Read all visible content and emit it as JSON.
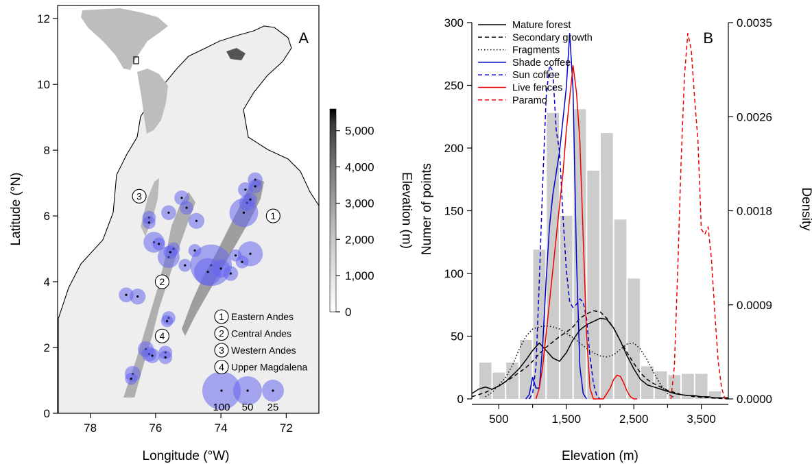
{
  "chart_data": [
    {
      "type": "map",
      "panel_label": "A",
      "xlabel": "Longitude (°W)",
      "ylabel": "Latitude (°N)",
      "xlim": [
        79,
        71
      ],
      "ylim": [
        0,
        12.4
      ],
      "xticks": [
        78,
        76,
        74,
        72
      ],
      "yticks": [
        0,
        2,
        4,
        6,
        8,
        10,
        12
      ],
      "colorbar": {
        "label": "Elevation (m)",
        "ticks": [
          "0",
          "1,000",
          "2,000",
          "3,000",
          "4,000",
          "5,000"
        ],
        "tick_values": [
          0,
          1000,
          2000,
          3000,
          4000,
          5000
        ],
        "range": [
          0,
          5600
        ]
      },
      "regions": [
        {
          "number": "1",
          "name": "Eastern Andes",
          "lon": 72.4,
          "lat": 6.0
        },
        {
          "number": "2",
          "name": "Central Andes",
          "lon": 75.8,
          "lat": 4.0
        },
        {
          "number": "3",
          "name": "Western Andes",
          "lon": 76.5,
          "lat": 6.6
        },
        {
          "number": "4",
          "name": "Upper Magdalena",
          "lon": 75.8,
          "lat": 2.35
        }
      ],
      "size_legend": [
        {
          "value": 100,
          "label": "100"
        },
        {
          "value": 50,
          "label": "50"
        },
        {
          "value": 25,
          "label": "25"
        }
      ],
      "sites": [
        {
          "lon": 74.3,
          "lat": 4.5,
          "n": 120
        },
        {
          "lon": 74.4,
          "lat": 4.3,
          "n": 45
        },
        {
          "lon": 73.3,
          "lat": 6.1,
          "n": 50
        },
        {
          "lon": 73.1,
          "lat": 4.85,
          "n": 35
        },
        {
          "lon": 75.6,
          "lat": 4.75,
          "n": 25
        },
        {
          "lon": 76.05,
          "lat": 5.2,
          "n": 22
        },
        {
          "lon": 74.0,
          "lat": 4.4,
          "n": 15
        },
        {
          "lon": 73.7,
          "lat": 4.25,
          "n": 8
        },
        {
          "lon": 73.2,
          "lat": 6.4,
          "n": 10
        },
        {
          "lon": 73.25,
          "lat": 6.8,
          "n": 8
        },
        {
          "lon": 72.95,
          "lat": 7.1,
          "n": 8
        },
        {
          "lon": 72.95,
          "lat": 6.9,
          "n": 6
        },
        {
          "lon": 73.1,
          "lat": 6.5,
          "n": 6
        },
        {
          "lon": 75.2,
          "lat": 6.55,
          "n": 8
        },
        {
          "lon": 75.05,
          "lat": 6.25,
          "n": 6
        },
        {
          "lon": 74.75,
          "lat": 5.85,
          "n": 10
        },
        {
          "lon": 75.6,
          "lat": 6.1,
          "n": 8
        },
        {
          "lon": 76.2,
          "lat": 5.95,
          "n": 6
        },
        {
          "lon": 76.2,
          "lat": 5.8,
          "n": 5
        },
        {
          "lon": 75.9,
          "lat": 5.15,
          "n": 5
        },
        {
          "lon": 75.45,
          "lat": 5.0,
          "n": 5
        },
        {
          "lon": 75.55,
          "lat": 4.9,
          "n": 6
        },
        {
          "lon": 75.1,
          "lat": 4.5,
          "n": 5
        },
        {
          "lon": 74.8,
          "lat": 4.95,
          "n": 5
        },
        {
          "lon": 76.9,
          "lat": 3.6,
          "n": 8
        },
        {
          "lon": 76.55,
          "lat": 3.55,
          "n": 10
        },
        {
          "lon": 75.6,
          "lat": 2.9,
          "n": 6
        },
        {
          "lon": 75.65,
          "lat": 2.8,
          "n": 4
        },
        {
          "lon": 76.3,
          "lat": 1.95,
          "n": 10
        },
        {
          "lon": 76.2,
          "lat": 1.8,
          "n": 8
        },
        {
          "lon": 76.1,
          "lat": 1.75,
          "n": 8
        },
        {
          "lon": 75.7,
          "lat": 1.85,
          "n": 6
        },
        {
          "lon": 75.7,
          "lat": 1.7,
          "n": 6
        },
        {
          "lon": 76.7,
          "lat": 1.2,
          "n": 10
        },
        {
          "lon": 76.75,
          "lat": 1.05,
          "n": 4
        },
        {
          "lon": 73.35,
          "lat": 4.6,
          "n": 5
        },
        {
          "lon": 73.55,
          "lat": 4.8,
          "n": 4
        }
      ],
      "inset": "world map with study area box"
    },
    {
      "type": "histogram_density",
      "panel_label": "B",
      "xlabel": "Elevation (m)",
      "ylabel": "Numer of points",
      "y2label": "Density",
      "xlim": [
        100,
        3900
      ],
      "ylim": [
        0,
        300
      ],
      "y2lim": [
        0,
        0.0035
      ],
      "xticks": [
        500,
        1500,
        2500,
        3500
      ],
      "xtick_labels": [
        "500",
        "1,500",
        "2,500",
        "3,500"
      ],
      "xminor": [
        1000,
        2000,
        3000
      ],
      "yticks": [
        0,
        50,
        100,
        150,
        200,
        250,
        300
      ],
      "y2ticks": [
        "0.0000",
        "0.0009",
        "0.0018",
        "0.0026",
        "0.0035"
      ],
      "y2tick_values": [
        0,
        0.000875,
        0.00175,
        0.002625,
        0.0035
      ],
      "histogram": {
        "bin_width": 200,
        "bin_starts": [
          200,
          400,
          600,
          800,
          1000,
          1200,
          1400,
          1600,
          1800,
          2000,
          2200,
          2400,
          2600,
          2800,
          3000,
          3200,
          3400,
          3600
        ],
        "counts": [
          29,
          21,
          29,
          47,
          119,
          228,
          146,
          231,
          182,
          212,
          143,
          96,
          26,
          22,
          19,
          20,
          20,
          6
        ],
        "color": "#cccccc"
      },
      "legend": [
        {
          "label": "Mature forest",
          "color": "#000000",
          "dash": "solid"
        },
        {
          "label": "Secondary growth",
          "color": "#000000",
          "dash": "dashed"
        },
        {
          "label": "Fragments",
          "color": "#000000",
          "dash": "dotted"
        },
        {
          "label": "Shade coffee",
          "color": "#0000cc",
          "dash": "solid"
        },
        {
          "label": "Sun coffee",
          "color": "#0000cc",
          "dash": "dashed"
        },
        {
          "label": "Live fences",
          "color": "#ee0000",
          "dash": "solid"
        },
        {
          "label": "Paramo",
          "color": "#ee0000",
          "dash": "dashed"
        }
      ],
      "density_series": [
        {
          "legend_index": 0,
          "x": [
            100,
            200,
            300,
            400,
            500,
            600,
            700,
            800,
            900,
            1000,
            1100,
            1200,
            1300,
            1400,
            1500,
            1600,
            1700,
            1800,
            1900,
            2000,
            2100,
            2200,
            2300,
            2400,
            2500,
            2600,
            2700,
            2800,
            2900,
            3000,
            3100,
            3200,
            3300,
            3400,
            3500,
            3600,
            3700,
            3800,
            3900
          ],
          "y": [
            5e-05,
            9e-05,
            0.00011,
            9e-05,
            0.00012,
            0.00016,
            0.00022,
            0.00028,
            0.00036,
            0.00045,
            0.00052,
            0.00045,
            0.00038,
            0.00035,
            0.00043,
            0.00055,
            0.00064,
            0.00069,
            0.00072,
            0.00075,
            0.00074,
            0.00066,
            0.00054,
            0.0004,
            0.00028,
            0.00018,
            0.00013,
            0.00011,
            9e-05,
            7e-05,
            5e-05,
            4e-05,
            3e-05,
            3e-05,
            2e-05,
            2e-05,
            1e-05,
            1e-05,
            1e-05
          ]
        },
        {
          "legend_index": 1,
          "x": [
            100,
            300,
            500,
            700,
            900,
            1000,
            1100,
            1200,
            1300,
            1400,
            1500,
            1600,
            1700,
            1800,
            1900,
            2000,
            2100,
            2200,
            2300,
            2400,
            2500,
            2600,
            2700,
            2800,
            2900,
            3000,
            3100,
            3200,
            3400,
            3600,
            3900
          ],
          "y": [
            2e-05,
            6e-05,
            0.00012,
            0.0002,
            0.00029,
            0.00035,
            0.00042,
            0.00048,
            0.00053,
            0.00058,
            0.00062,
            0.00067,
            0.00075,
            0.00079,
            0.00082,
            0.00081,
            0.00075,
            0.00066,
            0.00054,
            0.00043,
            0.00033,
            0.00024,
            0.00018,
            0.00014,
            0.00011,
            8e-05,
            6e-05,
            4e-05,
            2e-05,
            1e-05,
            0.0
          ]
        },
        {
          "legend_index": 2,
          "x": [
            300,
            400,
            500,
            600,
            700,
            800,
            900,
            1000,
            1100,
            1200,
            1300,
            1400,
            1500,
            1600,
            1700,
            1800,
            1900,
            2000,
            2100,
            2200,
            2300,
            2400,
            2500,
            2600,
            2700,
            2800,
            2900,
            3000,
            3100
          ],
          "y": [
            2e-05,
            6e-05,
            0.00013,
            0.0002,
            0.00031,
            0.00046,
            0.00058,
            0.00065,
            0.00067,
            0.00068,
            0.00067,
            0.00065,
            0.00061,
            0.00057,
            0.00052,
            0.00047,
            0.00043,
            0.0004,
            0.00039,
            0.00041,
            0.00046,
            0.00051,
            0.00052,
            0.00046,
            0.00036,
            0.00024,
            0.00013,
            5e-05,
            1e-05
          ]
        },
        {
          "legend_index": 3,
          "x": [
            900,
            950,
            1000,
            1050,
            1100,
            1150,
            1200,
            1250,
            1300,
            1350,
            1400,
            1450,
            1500,
            1550,
            1600,
            1650,
            1700,
            1750,
            1800
          ],
          "y": [
            0.0,
            4e-05,
            0.0002,
            0.0001,
            0.0001,
            0.0005,
            0.0011,
            0.0016,
            0.0019,
            0.0021,
            0.0023,
            0.0026,
            0.0029,
            0.0034,
            0.00287,
            0.0013,
            0.0003,
            5e-05,
            0.0
          ]
        },
        {
          "legend_index": 4,
          "x": [
            950,
            1000,
            1050,
            1100,
            1150,
            1200,
            1250,
            1300,
            1350,
            1400,
            1450,
            1500,
            1550,
            1600,
            1650,
            1700,
            1750,
            1800,
            1850,
            1900,
            1950,
            2000
          ],
          "y": [
            0.0,
            5e-05,
            0.0003,
            0.0011,
            0.002,
            0.0028,
            0.0031,
            0.00305,
            0.0025,
            0.0023,
            0.0017,
            0.0012,
            0.0009,
            0.00085,
            0.00088,
            0.00093,
            0.0009,
            0.00075,
            0.0004,
            0.00015,
            3e-05,
            0.0
          ]
        },
        {
          "legend_index": 5,
          "x": [
            1050,
            1100,
            1150,
            1200,
            1250,
            1300,
            1350,
            1400,
            1450,
            1500,
            1550,
            1600,
            1650,
            1700,
            1750,
            1800,
            1850,
            1900,
            1950,
            2000,
            2050,
            2100,
            2150,
            2200,
            2250,
            2300,
            2350,
            2400,
            2450,
            2500,
            2550
          ],
          "y": [
            0.0,
            0.0001,
            0.0003,
            0.0006,
            0.0009,
            0.0012,
            0.0015,
            0.0018,
            0.0021,
            0.0025,
            0.0028,
            0.0031,
            0.00285,
            0.0024,
            0.0015,
            0.0006,
            0.0001,
            0.0,
            0.0,
            0.0,
            0.0,
            5e-05,
            0.0001,
            0.00018,
            0.00022,
            0.00021,
            0.00015,
            7e-05,
            2e-05,
            0.0,
            0.0
          ]
        },
        {
          "legend_index": 6,
          "x": [
            3050,
            3100,
            3150,
            3200,
            3250,
            3300,
            3350,
            3400,
            3450,
            3500,
            3550,
            3600,
            3650,
            3700,
            3750,
            3800,
            3850
          ],
          "y": [
            0.0,
            0.0003,
            0.0012,
            0.0022,
            0.003,
            0.0034,
            0.00325,
            0.0028,
            0.0024,
            0.00158,
            0.00153,
            0.0016,
            0.0013,
            0.0008,
            0.00035,
            0.0001,
            0.0
          ]
        }
      ]
    }
  ]
}
